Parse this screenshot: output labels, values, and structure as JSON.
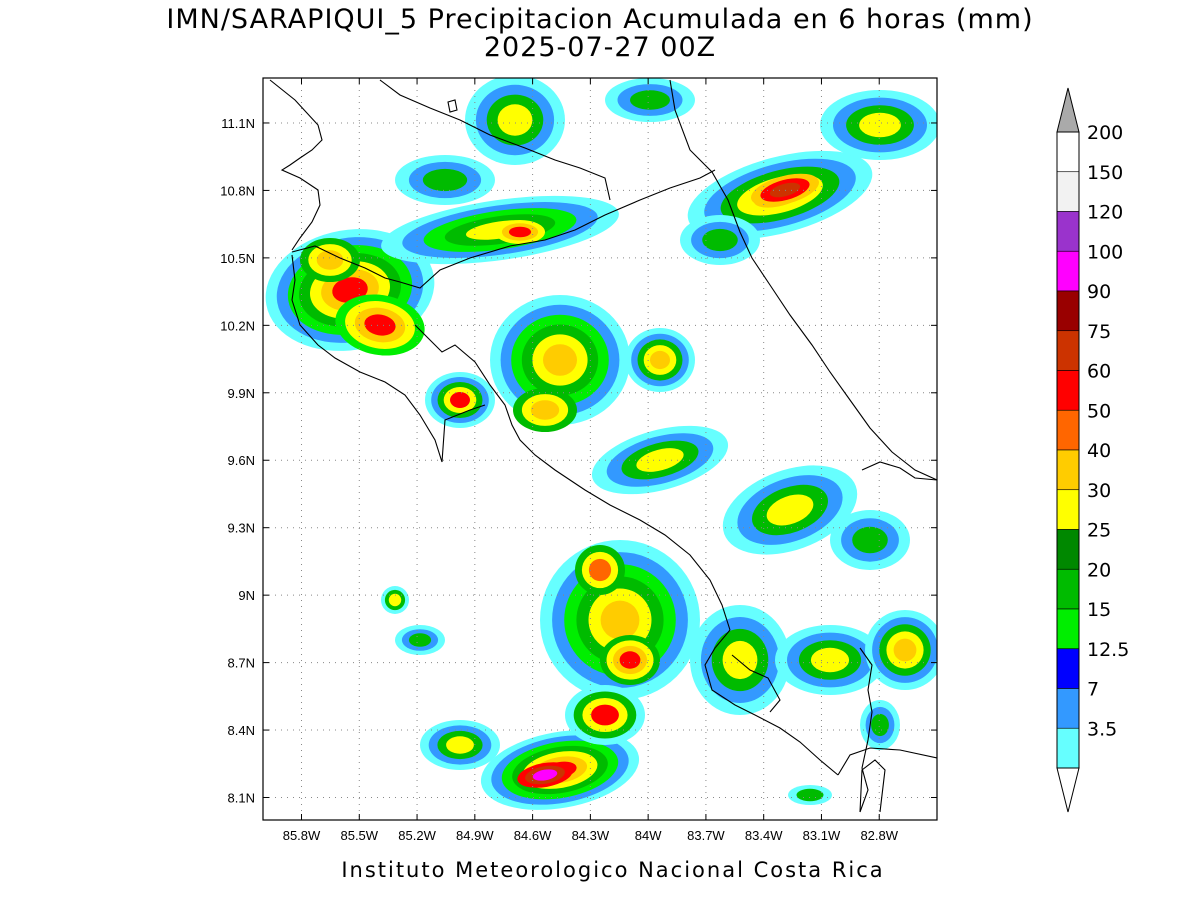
{
  "title": {
    "line1": "IMN/SARAPIQUI_5 Precipitacion Acumulada en 6 horas (mm)",
    "line2": "2025-07-27 00Z"
  },
  "footer": "Instituto Meteorologico Nacional Costa Rica",
  "map": {
    "lon_range": [
      -86.0,
      -82.5
    ],
    "lat_range": [
      8.0,
      11.3
    ],
    "lat_ticks": [
      "11.1N",
      "10.8N",
      "10.5N",
      "10.2N",
      "9.9N",
      "9.6N",
      "9.3N",
      "9N",
      "8.7N",
      "8.4N",
      "8.1N"
    ],
    "lat_values": [
      11.1,
      10.8,
      10.5,
      10.2,
      9.9,
      9.6,
      9.3,
      9.0,
      8.7,
      8.4,
      8.1
    ],
    "lon_ticks": [
      "85.8W",
      "85.5W",
      "85.2W",
      "84.9W",
      "84.6W",
      "84.3W",
      "84W",
      "83.7W",
      "83.4W",
      "83.1W",
      "82.8W"
    ],
    "lon_values": [
      -85.8,
      -85.5,
      -85.2,
      -84.9,
      -84.6,
      -84.3,
      -84.0,
      -83.7,
      -83.4,
      -83.1,
      -82.8
    ],
    "grid": "dotted"
  },
  "colorbar": {
    "levels": [
      "200",
      "150",
      "120",
      "100",
      "90",
      "75",
      "60",
      "50",
      "40",
      "30",
      "25",
      "20",
      "15",
      "12.5",
      "7",
      "3.5"
    ],
    "colors": [
      "#ffffff",
      "#f2f2f2",
      "#9a33cc",
      "#ff00ff",
      "#990000",
      "#cc3300",
      "#ff0000",
      "#ff6600",
      "#ffcc00",
      "#ffff00",
      "#008800",
      "#00bb00",
      "#00ee00",
      "#0000ff",
      "#3399ff",
      "#66ffff"
    ],
    "over_color": "#aaaaaa",
    "under_color": "#ffffff"
  },
  "colors": {
    "lt_cyan": "#66ffff",
    "lt_blue": "#3399ff",
    "blue": "#0000ff",
    "lt_green": "#00ee00",
    "green": "#00bb00",
    "dk_green": "#008800",
    "yellow": "#ffff00",
    "gold": "#ffcc00",
    "orange": "#ff6600",
    "red": "#ff0000",
    "dk_red": "#cc3300",
    "maroon": "#990000",
    "magenta": "#ff00ff"
  }
}
